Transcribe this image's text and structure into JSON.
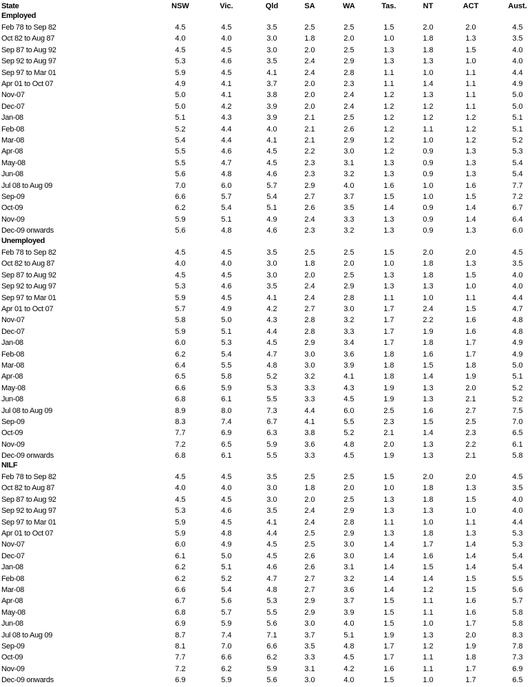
{
  "header": {
    "label": "State",
    "columns": [
      "NSW",
      "Vic.",
      "Qld",
      "SA",
      "WA",
      "Tas.",
      "NT",
      "ACT",
      "Aust."
    ]
  },
  "sections": [
    {
      "title": "Employed",
      "rows": [
        {
          "label": "Feb 78 to Sep 82",
          "values": [
            "4.5",
            "4.5",
            "3.5",
            "2.5",
            "2.5",
            "1.5",
            "2.0",
            "2.0",
            "4.5"
          ]
        },
        {
          "label": "Oct 82 to Aug 87",
          "values": [
            "4.0",
            "4.0",
            "3.0",
            "1.8",
            "2.0",
            "1.0",
            "1.8",
            "1.3",
            "3.5"
          ]
        },
        {
          "label": "Sep 87 to Aug 92",
          "values": [
            "4.5",
            "4.5",
            "3.0",
            "2.0",
            "2.5",
            "1.3",
            "1.8",
            "1.5",
            "4.0"
          ]
        },
        {
          "label": "Sep 92 to Aug 97",
          "values": [
            "5.3",
            "4.6",
            "3.5",
            "2.4",
            "2.9",
            "1.3",
            "1.3",
            "1.0",
            "4.0"
          ]
        },
        {
          "label": "Sep 97 to Mar 01",
          "values": [
            "5.9",
            "4.5",
            "4.1",
            "2.4",
            "2.8",
            "1.1",
            "1.0",
            "1.1",
            "4.4"
          ]
        },
        {
          "label": "Apr 01 to Oct 07",
          "values": [
            "4.9",
            "4.1",
            "3.7",
            "2.0",
            "2.3",
            "1.1",
            "1.4",
            "1.1",
            "4.9"
          ]
        },
        {
          "label": "Nov-07",
          "values": [
            "5.0",
            "4.1",
            "3.8",
            "2.0",
            "2.4",
            "1.2",
            "1.3",
            "1.1",
            "5.0"
          ]
        },
        {
          "label": "Dec-07",
          "values": [
            "5.0",
            "4.2",
            "3.9",
            "2.0",
            "2.4",
            "1.2",
            "1.2",
            "1.1",
            "5.0"
          ]
        },
        {
          "label": "Jan-08",
          "values": [
            "5.1",
            "4.3",
            "3.9",
            "2.1",
            "2.5",
            "1.2",
            "1.2",
            "1.2",
            "5.1"
          ]
        },
        {
          "label": "Feb-08",
          "values": [
            "5.2",
            "4.4",
            "4.0",
            "2.1",
            "2.6",
            "1.2",
            "1.1",
            "1.2",
            "5.1"
          ]
        },
        {
          "label": "Mar-08",
          "values": [
            "5.4",
            "4.4",
            "4.1",
            "2.1",
            "2.9",
            "1.2",
            "1.0",
            "1.2",
            "5.2"
          ]
        },
        {
          "label": "Apr-08",
          "values": [
            "5.5",
            "4.6",
            "4.5",
            "2.2",
            "3.0",
            "1.2",
            "0.9",
            "1.3",
            "5.3"
          ]
        },
        {
          "label": "May-08",
          "values": [
            "5.5",
            "4.7",
            "4.5",
            "2.3",
            "3.1",
            "1.3",
            "0.9",
            "1.3",
            "5.4"
          ]
        },
        {
          "label": "Jun-08",
          "values": [
            "5.6",
            "4.8",
            "4.6",
            "2.3",
            "3.2",
            "1.3",
            "0.9",
            "1.3",
            "5.4"
          ]
        },
        {
          "label": "Jul 08 to Aug 09",
          "values": [
            "7.0",
            "6.0",
            "5.7",
            "2.9",
            "4.0",
            "1.6",
            "1.0",
            "1.6",
            "7.7"
          ]
        },
        {
          "label": "Sep-09",
          "values": [
            "6.6",
            "5.7",
            "5.4",
            "2.7",
            "3.7",
            "1.5",
            "1.0",
            "1.5",
            "7.2"
          ]
        },
        {
          "label": "Oct-09",
          "values": [
            "6.2",
            "5.4",
            "5.1",
            "2.6",
            "3.5",
            "1.4",
            "0.9",
            "1.4",
            "6.7"
          ]
        },
        {
          "label": "Nov-09",
          "values": [
            "5.9",
            "5.1",
            "4.9",
            "2.4",
            "3.3",
            "1.3",
            "0.9",
            "1.4",
            "6.4"
          ]
        },
        {
          "label": "Dec-09 onwards",
          "values": [
            "5.6",
            "4.8",
            "4.6",
            "2.3",
            "3.2",
            "1.3",
            "0.9",
            "1.3",
            "6.0"
          ]
        }
      ]
    },
    {
      "title": "Unemployed",
      "rows": [
        {
          "label": "Feb 78 to Sep 82",
          "values": [
            "4.5",
            "4.5",
            "3.5",
            "2.5",
            "2.5",
            "1.5",
            "2.0",
            "2.0",
            "4.5"
          ]
        },
        {
          "label": "Oct 82 to Aug 87",
          "values": [
            "4.0",
            "4.0",
            "3.0",
            "1.8",
            "2.0",
            "1.0",
            "1.8",
            "1.3",
            "3.5"
          ]
        },
        {
          "label": "Sep 87 to Aug 92",
          "values": [
            "4.5",
            "4.5",
            "3.0",
            "2.0",
            "2.5",
            "1.3",
            "1.8",
            "1.5",
            "4.0"
          ]
        },
        {
          "label": "Sep 92 to Aug 97",
          "values": [
            "5.3",
            "4.6",
            "3.5",
            "2.4",
            "2.9",
            "1.3",
            "1.3",
            "1.0",
            "4.0"
          ]
        },
        {
          "label": "Sep 97 to Mar 01",
          "values": [
            "5.9",
            "4.5",
            "4.1",
            "2.4",
            "2.8",
            "1.1",
            "1.0",
            "1.1",
            "4.4"
          ]
        },
        {
          "label": "Apr 01 to Oct 07",
          "values": [
            "5.7",
            "4.9",
            "4.2",
            "2.7",
            "3.0",
            "1.7",
            "2.4",
            "1.5",
            "4.7"
          ]
        },
        {
          "label": "Nov-07",
          "values": [
            "5.8",
            "5.0",
            "4.3",
            "2.8",
            "3.2",
            "1.7",
            "2.2",
            "1.6",
            "4.8"
          ]
        },
        {
          "label": "Dec-07",
          "values": [
            "5.9",
            "5.1",
            "4.4",
            "2.8",
            "3.3",
            "1.7",
            "1.9",
            "1.6",
            "4.8"
          ]
        },
        {
          "label": "Jan-08",
          "values": [
            "6.0",
            "5.3",
            "4.5",
            "2.9",
            "3.4",
            "1.7",
            "1.8",
            "1.7",
            "4.9"
          ]
        },
        {
          "label": "Feb-08",
          "values": [
            "6.2",
            "5.4",
            "4.7",
            "3.0",
            "3.6",
            "1.8",
            "1.6",
            "1.7",
            "4.9"
          ]
        },
        {
          "label": "Mar-08",
          "values": [
            "6.4",
            "5.5",
            "4.8",
            "3.0",
            "3.9",
            "1.8",
            "1.5",
            "1.8",
            "5.0"
          ]
        },
        {
          "label": "Apr-08",
          "values": [
            "6.5",
            "5.8",
            "5.2",
            "3.2",
            "4.1",
            "1.8",
            "1.4",
            "1.9",
            "5.1"
          ]
        },
        {
          "label": "May-08",
          "values": [
            "6.6",
            "5.9",
            "5.3",
            "3.3",
            "4.3",
            "1.9",
            "1.3",
            "2.0",
            "5.2"
          ]
        },
        {
          "label": "Jun-08",
          "values": [
            "6.8",
            "6.1",
            "5.5",
            "3.3",
            "4.5",
            "1.9",
            "1.3",
            "2.1",
            "5.2"
          ]
        },
        {
          "label": "Jul 08 to Aug 09",
          "values": [
            "8.9",
            "8.0",
            "7.3",
            "4.4",
            "6.0",
            "2.5",
            "1.6",
            "2.7",
            "7.5"
          ]
        },
        {
          "label": "Sep-09",
          "values": [
            "8.3",
            "7.4",
            "6.7",
            "4.1",
            "5.5",
            "2.3",
            "1.5",
            "2.5",
            "7.0"
          ]
        },
        {
          "label": "Oct-09",
          "values": [
            "7.7",
            "6.9",
            "6.3",
            "3.8",
            "5.2",
            "2.1",
            "1.4",
            "2.3",
            "6.5"
          ]
        },
        {
          "label": "Nov-09",
          "values": [
            "7.2",
            "6.5",
            "5.9",
            "3.6",
            "4.8",
            "2.0",
            "1.3",
            "2.2",
            "6.1"
          ]
        },
        {
          "label": "Dec-09 onwards",
          "values": [
            "6.8",
            "6.1",
            "5.5",
            "3.3",
            "4.5",
            "1.9",
            "1.3",
            "2.1",
            "5.8"
          ]
        }
      ]
    },
    {
      "title": "NILF",
      "rows": [
        {
          "label": "Feb 78 to Sep 82",
          "values": [
            "4.5",
            "4.5",
            "3.5",
            "2.5",
            "2.5",
            "1.5",
            "2.0",
            "2.0",
            "4.5"
          ]
        },
        {
          "label": "Oct 82 to Aug 87",
          "values": [
            "4.0",
            "4.0",
            "3.0",
            "1.8",
            "2.0",
            "1.0",
            "1.8",
            "1.3",
            "3.5"
          ]
        },
        {
          "label": "Sep 87 to Aug 92",
          "values": [
            "4.5",
            "4.5",
            "3.0",
            "2.0",
            "2.5",
            "1.3",
            "1.8",
            "1.5",
            "4.0"
          ]
        },
        {
          "label": "Sep 92 to Aug 97",
          "values": [
            "5.3",
            "4.6",
            "3.5",
            "2.4",
            "2.9",
            "1.3",
            "1.3",
            "1.0",
            "4.0"
          ]
        },
        {
          "label": "Sep 97 to Mar 01",
          "values": [
            "5.9",
            "4.5",
            "4.1",
            "2.4",
            "2.8",
            "1.1",
            "1.0",
            "1.1",
            "4.4"
          ]
        },
        {
          "label": "Apr 01 to Oct 07",
          "values": [
            "5.9",
            "4.8",
            "4.4",
            "2.5",
            "2.9",
            "1.3",
            "1.8",
            "1.3",
            "5.3"
          ]
        },
        {
          "label": "Nov-07",
          "values": [
            "6.0",
            "4.9",
            "4.5",
            "2.5",
            "3.0",
            "1.4",
            "1.7",
            "1.4",
            "5.3"
          ]
        },
        {
          "label": "Dec-07",
          "values": [
            "6.1",
            "5.0",
            "4.5",
            "2.6",
            "3.0",
            "1.4",
            "1.6",
            "1.4",
            "5.4"
          ]
        },
        {
          "label": "Jan-08",
          "values": [
            "6.2",
            "5.1",
            "4.6",
            "2.6",
            "3.1",
            "1.4",
            "1.5",
            "1.4",
            "5.4"
          ]
        },
        {
          "label": "Feb-08",
          "values": [
            "6.2",
            "5.2",
            "4.7",
            "2.7",
            "3.2",
            "1.4",
            "1.4",
            "1.5",
            "5.5"
          ]
        },
        {
          "label": "Mar-08",
          "values": [
            "6.6",
            "5.4",
            "4.8",
            "2.7",
            "3.6",
            "1.4",
            "1.2",
            "1.5",
            "5.6"
          ]
        },
        {
          "label": "Apr-08",
          "values": [
            "6.7",
            "5.6",
            "5.3",
            "2.9",
            "3.7",
            "1.5",
            "1.1",
            "1.6",
            "5.7"
          ]
        },
        {
          "label": "May-08",
          "values": [
            "6.8",
            "5.7",
            "5.5",
            "2.9",
            "3.9",
            "1.5",
            "1.1",
            "1.6",
            "5.8"
          ]
        },
        {
          "label": "Jun-08",
          "values": [
            "6.9",
            "5.9",
            "5.6",
            "3.0",
            "4.0",
            "1.5",
            "1.0",
            "1.7",
            "5.8"
          ]
        },
        {
          "label": "Jul 08 to Aug 09",
          "values": [
            "8.7",
            "7.4",
            "7.1",
            "3.7",
            "5.1",
            "1.9",
            "1.3",
            "2.0",
            "8.3"
          ]
        },
        {
          "label": "Sep-09",
          "values": [
            "8.1",
            "7.0",
            "6.6",
            "3.5",
            "4.8",
            "1.7",
            "1.2",
            "1.9",
            "7.8"
          ]
        },
        {
          "label": "Oct-09",
          "values": [
            "7.7",
            "6.6",
            "6.2",
            "3.3",
            "4.5",
            "1.7",
            "1.1",
            "1.8",
            "7.3"
          ]
        },
        {
          "label": "Nov-09",
          "values": [
            "7.2",
            "6.2",
            "5.9",
            "3.1",
            "4.2",
            "1.6",
            "1.1",
            "1.7",
            "6.9"
          ]
        },
        {
          "label": "Dec-09 onwards",
          "values": [
            "6.9",
            "5.9",
            "5.6",
            "3.0",
            "4.0",
            "1.5",
            "1.0",
            "1.7",
            "6.5"
          ]
        }
      ]
    }
  ]
}
